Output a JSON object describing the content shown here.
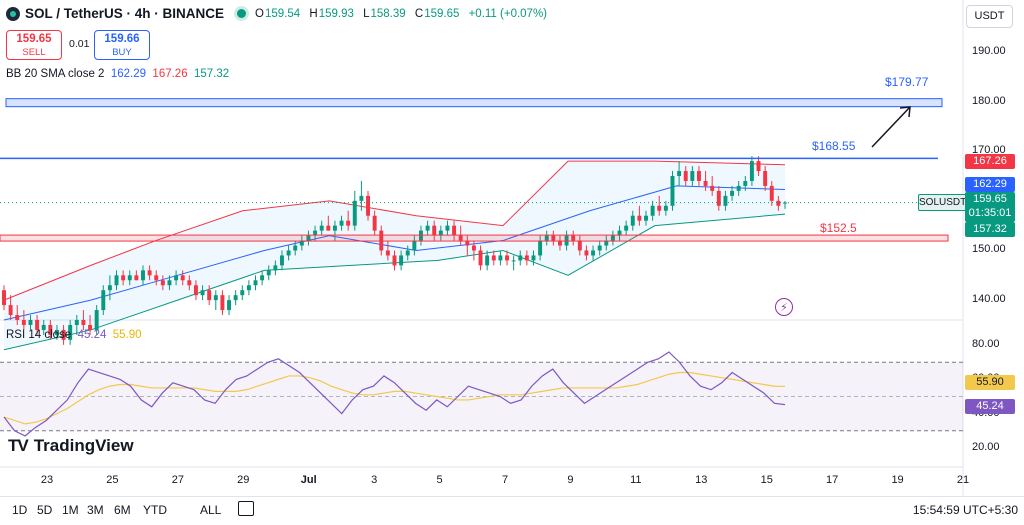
{
  "header": {
    "symbol": "SOL / TetherUS · 4h · BINANCE",
    "ohlc": {
      "o_label": "O",
      "o": "159.54",
      "h_label": "H",
      "h": "159.93",
      "l_label": "L",
      "l": "158.39",
      "c_label": "C",
      "c": "159.65",
      "change": "+0.11 (+0.07%)"
    }
  },
  "trade": {
    "sell_price": "159.65",
    "sell_label": "SELL",
    "buy_price": "159.66",
    "buy_label": "BUY",
    "spread": "0.01"
  },
  "currency": "USDT",
  "indicators": {
    "bb_label": "BB 20 SMA close 2",
    "bb_mid": "162.29",
    "bb_upper": "167.26",
    "bb_lower": "157.32",
    "rsi_label": "RSI 14 close",
    "rsi_value": "45.24",
    "rsi_ma": "55.90"
  },
  "annotations": {
    "target": "$179.77",
    "resistance": "$168.55",
    "support": "$152.5"
  },
  "price_tags": {
    "upper": "167.26",
    "mid": "162.29",
    "last": "159.65",
    "countdown": "01:35:01",
    "lower": "157.32",
    "symbol_tag": "SOLUSDT",
    "rsi_ma": "55.90",
    "rsi": "45.24"
  },
  "watermark": "TradingView",
  "timeframes": [
    "1D",
    "5D",
    "1M",
    "3M",
    "6M",
    "YTD",
    "ALL"
  ],
  "clock": "15:54:59 UTC+5:30",
  "colors": {
    "up": "#089981",
    "down": "#f23645",
    "bb_mid": "#2962ff",
    "bb_upper": "#f23645",
    "bb_lower": "#089981",
    "rsi": "#7e57c2",
    "rsi_ma": "#f2c94c"
  },
  "chart_data": [
    {
      "type": "candlestick",
      "title": "SOL / TetherUS · 4h · BINANCE",
      "y_ticks": [
        "190.00",
        "180.00",
        "170.00",
        "160.00",
        "150.00",
        "140.00"
      ],
      "x_ticks": [
        "23",
        "25",
        "27",
        "29",
        "Jul",
        "3",
        "5",
        "7",
        "9",
        "11",
        "13",
        "15",
        "17",
        "19",
        "21"
      ],
      "ylim": [
        136,
        194
      ],
      "candles": [
        [
          142,
          143,
          138,
          139
        ],
        [
          139,
          141,
          136,
          137
        ],
        [
          137,
          139,
          135,
          136
        ],
        [
          136,
          138,
          134,
          135
        ],
        [
          135,
          137,
          134,
          136
        ],
        [
          136,
          137,
          133,
          134
        ],
        [
          134,
          136,
          133,
          135
        ],
        [
          135,
          136,
          132,
          133
        ],
        [
          133,
          135,
          132,
          134
        ],
        [
          134,
          135,
          131,
          132
        ],
        [
          132,
          136,
          131,
          135
        ],
        [
          135,
          137,
          133,
          136
        ],
        [
          136,
          138,
          134,
          135
        ],
        [
          135,
          137,
          133,
          134
        ],
        [
          134,
          139,
          133,
          138
        ],
        [
          138,
          143,
          137,
          142
        ],
        [
          142,
          145,
          140,
          143
        ],
        [
          143,
          146,
          142,
          145
        ],
        [
          145,
          146,
          143,
          144
        ],
        [
          144,
          146,
          143,
          145
        ],
        [
          145,
          146,
          144,
          144
        ],
        [
          144,
          147,
          143,
          146
        ],
        [
          146,
          147,
          144,
          145
        ],
        [
          145,
          146,
          143,
          144
        ],
        [
          144,
          145,
          142,
          143
        ],
        [
          143,
          145,
          142,
          144
        ],
        [
          144,
          146,
          143,
          145
        ],
        [
          145,
          146,
          143,
          144
        ],
        [
          144,
          145,
          142,
          143
        ],
        [
          143,
          144,
          140,
          141
        ],
        [
          141,
          143,
          140,
          142
        ],
        [
          142,
          143,
          139,
          140
        ],
        [
          140,
          142,
          138,
          141
        ],
        [
          141,
          142,
          137,
          138
        ],
        [
          138,
          141,
          137,
          140
        ],
        [
          140,
          142,
          139,
          141
        ],
        [
          141,
          143,
          140,
          142
        ],
        [
          142,
          144,
          141,
          143
        ],
        [
          143,
          145,
          142,
          144
        ],
        [
          144,
          146,
          143,
          145
        ],
        [
          145,
          147,
          144,
          146
        ],
        [
          146,
          148,
          145,
          147
        ],
        [
          147,
          150,
          146,
          149
        ],
        [
          149,
          151,
          148,
          150
        ],
        [
          150,
          152,
          149,
          151
        ],
        [
          151,
          153,
          150,
          152
        ],
        [
          152,
          154,
          151,
          153
        ],
        [
          153,
          155,
          152,
          154
        ],
        [
          154,
          156,
          153,
          155
        ],
        [
          155,
          157,
          154,
          154
        ],
        [
          154,
          156,
          152,
          155
        ],
        [
          155,
          157,
          154,
          156
        ],
        [
          156,
          158,
          154,
          155
        ],
        [
          155,
          162,
          154,
          160
        ],
        [
          160,
          164,
          158,
          161
        ],
        [
          161,
          162,
          156,
          157
        ],
        [
          157,
          158,
          153,
          154
        ],
        [
          154,
          155,
          149,
          150
        ],
        [
          150,
          152,
          148,
          149
        ],
        [
          149,
          150,
          146,
          147
        ],
        [
          147,
          150,
          146,
          149
        ],
        [
          149,
          151,
          148,
          150
        ],
        [
          150,
          153,
          149,
          152
        ],
        [
          152,
          155,
          151,
          154
        ],
        [
          154,
          156,
          153,
          155
        ],
        [
          155,
          156,
          152,
          153
        ],
        [
          153,
          155,
          152,
          154
        ],
        [
          154,
          156,
          153,
          155
        ],
        [
          155,
          156,
          152,
          153
        ],
        [
          153,
          155,
          151,
          152
        ],
        [
          152,
          153,
          149,
          151
        ],
        [
          151,
          152,
          148,
          150
        ],
        [
          150,
          151,
          146,
          147
        ],
        [
          147,
          150,
          146,
          149
        ],
        [
          149,
          150,
          147,
          148
        ],
        [
          148,
          150,
          147,
          149
        ],
        [
          149,
          150,
          147,
          148
        ],
        [
          148,
          149,
          146,
          148
        ],
        [
          148,
          150,
          147,
          149
        ],
        [
          149,
          150,
          147,
          148
        ],
        [
          148,
          150,
          147,
          149
        ],
        [
          149,
          153,
          148,
          152
        ],
        [
          152,
          154,
          151,
          153
        ],
        [
          153,
          154,
          151,
          152
        ],
        [
          152,
          153,
          150,
          151
        ],
        [
          151,
          154,
          150,
          153
        ],
        [
          153,
          154,
          151,
          152
        ],
        [
          152,
          153,
          149,
          150
        ],
        [
          150,
          151,
          148,
          149
        ],
        [
          149,
          151,
          148,
          150
        ],
        [
          150,
          152,
          149,
          151
        ],
        [
          151,
          153,
          150,
          152
        ],
        [
          152,
          154,
          151,
          153
        ],
        [
          153,
          155,
          152,
          154
        ],
        [
          154,
          156,
          153,
          155
        ],
        [
          155,
          158,
          154,
          157
        ],
        [
          157,
          159,
          155,
          156
        ],
        [
          156,
          158,
          155,
          157
        ],
        [
          157,
          160,
          156,
          159
        ],
        [
          159,
          161,
          157,
          158
        ],
        [
          158,
          160,
          157,
          159
        ],
        [
          159,
          166,
          158,
          165
        ],
        [
          165,
          168,
          163,
          166
        ],
        [
          166,
          167,
          163,
          164
        ],
        [
          164,
          167,
          163,
          166
        ],
        [
          166,
          167,
          163,
          164
        ],
        [
          164,
          166,
          162,
          163
        ],
        [
          163,
          165,
          161,
          162
        ],
        [
          162,
          163,
          158,
          159
        ],
        [
          159,
          162,
          158,
          161
        ],
        [
          161,
          163,
          160,
          162
        ],
        [
          162,
          164,
          161,
          163
        ],
        [
          163,
          165,
          162,
          164
        ],
        [
          164,
          169,
          163,
          168
        ],
        [
          168,
          169,
          165,
          166
        ],
        [
          166,
          167,
          162,
          163
        ],
        [
          163,
          164,
          159,
          160
        ],
        [
          160,
          161,
          158,
          159
        ],
        [
          159.54,
          159.93,
          158.39,
          159.65
        ]
      ],
      "bb_mid_points": [
        [
          0,
          136
        ],
        [
          20,
          140
        ],
        [
          40,
          145
        ],
        [
          60,
          150
        ],
        [
          75,
          153
        ],
        [
          95,
          150
        ],
        [
          115,
          152
        ],
        [
          135,
          158
        ],
        [
          155,
          163
        ],
        [
          180,
          162.29
        ]
      ],
      "bb_upper_points": [
        [
          0,
          140
        ],
        [
          20,
          147
        ],
        [
          35,
          152
        ],
        [
          55,
          158
        ],
        [
          75,
          160
        ],
        [
          95,
          157
        ],
        [
          115,
          155
        ],
        [
          130,
          168
        ],
        [
          150,
          168
        ],
        [
          180,
          167.26
        ]
      ],
      "bb_lower_points": [
        [
          0,
          130
        ],
        [
          20,
          134
        ],
        [
          40,
          140
        ],
        [
          60,
          146
        ],
        [
          80,
          147
        ],
        [
          100,
          148
        ],
        [
          115,
          150
        ],
        [
          130,
          145
        ],
        [
          150,
          155
        ],
        [
          180,
          157.32
        ]
      ]
    },
    {
      "type": "line",
      "title": "RSI 14 close",
      "y_ticks": [
        "80.00",
        "60.00",
        "40.00",
        "20.00"
      ],
      "ylim": [
        10,
        90
      ],
      "series": [
        {
          "name": "RSI",
          "values": [
            38,
            30,
            27,
            32,
            36,
            42,
            48,
            58,
            66,
            64,
            62,
            60,
            56,
            48,
            44,
            52,
            58,
            56,
            54,
            48,
            46,
            54,
            60,
            62,
            66,
            70,
            72,
            68,
            64,
            58,
            52,
            46,
            40,
            48,
            54,
            56,
            62,
            58,
            52,
            46,
            42,
            48,
            44,
            50,
            56,
            54,
            52,
            50,
            46,
            48,
            56,
            62,
            66,
            58,
            52,
            46,
            50,
            54,
            58,
            62,
            66,
            70,
            72,
            76,
            70,
            62,
            56,
            54,
            58,
            64,
            60,
            56,
            52,
            46,
            45.24
          ]
        },
        {
          "name": "MA",
          "values": [
            38,
            36,
            34,
            35,
            37,
            40,
            43,
            47,
            51,
            54,
            56,
            57,
            57,
            56,
            55,
            55,
            55,
            55,
            55,
            54,
            53,
            53,
            53,
            54,
            56,
            58,
            60,
            62,
            62,
            61,
            59,
            56,
            54,
            52,
            51,
            51,
            52,
            53,
            53,
            52,
            51,
            50,
            49,
            48,
            48,
            49,
            50,
            51,
            51,
            51,
            52,
            53,
            54,
            55,
            55,
            55,
            55,
            55,
            55,
            56,
            57,
            59,
            61,
            63,
            64,
            64,
            63,
            62,
            61,
            60,
            59,
            58,
            57,
            56,
            55.9
          ]
        }
      ],
      "bands": {
        "upper": 70,
        "lower": 30
      }
    }
  ]
}
